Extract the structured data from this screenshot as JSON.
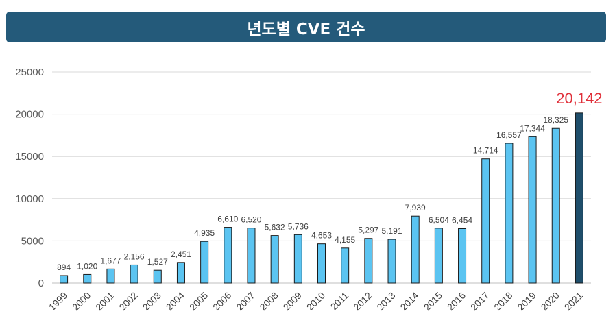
{
  "title": "년도별 CVE 건수",
  "colors": {
    "title_bg": "#245a7a",
    "bar": "#5bc4f1",
    "bar_highlight": "#1f4e6b",
    "bar_stroke": "#1a1a1a",
    "gridline": "#d9d9d9",
    "highlight_label": "#e0303a"
  },
  "chart_data": {
    "type": "bar",
    "title": "년도별 CVE 건수",
    "xlabel": "",
    "ylabel": "",
    "ylim": [
      0,
      25000
    ],
    "yticks": [
      0,
      5000,
      10000,
      15000,
      20000,
      25000
    ],
    "grid": true,
    "legend": "none",
    "highlight_category": "2021",
    "categories": [
      "1999",
      "2000",
      "2001",
      "2002",
      "2003",
      "2004",
      "2005",
      "2006",
      "2007",
      "2008",
      "2009",
      "2010",
      "2011",
      "2012",
      "2013",
      "2014",
      "2015",
      "2016",
      "2017",
      "2018",
      "2019",
      "2020",
      "2021"
    ],
    "values": [
      894,
      1020,
      1677,
      2156,
      1527,
      2451,
      4935,
      6610,
      6520,
      5632,
      5736,
      4653,
      4155,
      5297,
      5191,
      7939,
      6504,
      6454,
      14714,
      16557,
      17344,
      18325,
      20142
    ],
    "data_labels": [
      "894",
      "1,020",
      "1,677",
      "2,156",
      "1,527",
      "2,451",
      "4,935",
      "6,610",
      "6,520",
      "5,632",
      "5,736",
      "4,653",
      "4,155",
      "5,297",
      "5,191",
      "7,939",
      "6,504",
      "6,454",
      "14,714",
      "16,557",
      "17,344",
      "18,325",
      "20,142"
    ]
  }
}
